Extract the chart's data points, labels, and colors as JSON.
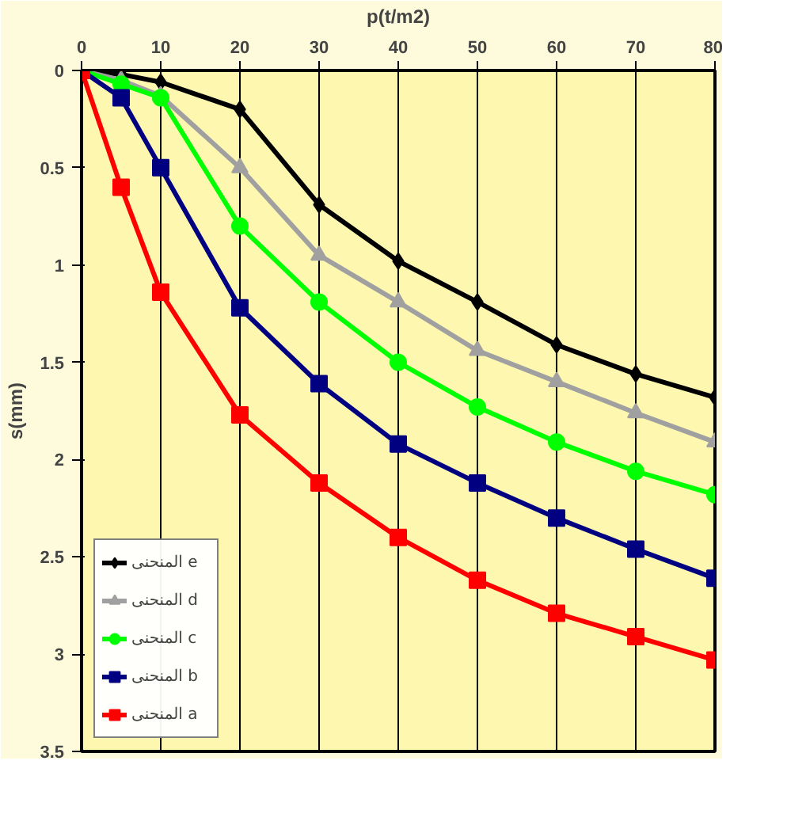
{
  "chart_data": {
    "type": "line",
    "xlabel": "p(t/m2)",
    "ylabel": "s(mm)",
    "x": [
      0,
      5,
      10,
      20,
      30,
      40,
      50,
      60,
      70,
      80
    ],
    "xlim": [
      0,
      80
    ],
    "xticks": [
      0,
      10,
      20,
      30,
      40,
      50,
      60,
      70,
      80
    ],
    "ylim": [
      3.5,
      0
    ],
    "yticks": [
      0,
      0.5,
      1,
      1.5,
      2,
      2.5,
      3,
      3.5
    ],
    "grid": "x",
    "legend": "bottom left",
    "line_style": "solid",
    "series": [
      {
        "name": "المنحنى e",
        "color": "#000000",
        "marker": "diamond",
        "values": [
          0,
          0.02,
          0.06,
          0.2,
          0.69,
          0.98,
          1.19,
          1.41,
          1.56,
          1.68
        ]
      },
      {
        "name": "المنحنى d",
        "color": "#a0a0a0",
        "marker": "triangle",
        "values": [
          0,
          0.05,
          0.13,
          0.5,
          0.95,
          1.19,
          1.44,
          1.6,
          1.76,
          1.91
        ]
      },
      {
        "name": "المنحنى c",
        "color": "#00ff00",
        "marker": "circle",
        "values": [
          0,
          0.07,
          0.14,
          0.8,
          1.19,
          1.5,
          1.73,
          1.91,
          2.06,
          2.18
        ]
      },
      {
        "name": "المنحنى b",
        "color": "#000080",
        "marker": "square",
        "values": [
          0,
          0.14,
          0.5,
          1.22,
          1.61,
          1.92,
          2.12,
          2.3,
          2.46,
          2.61
        ]
      },
      {
        "name": "المنحنى a",
        "color": "#ff0000",
        "marker": "square",
        "values": [
          0,
          0.6,
          1.14,
          1.77,
          2.12,
          2.4,
          2.62,
          2.79,
          2.91,
          3.03
        ]
      }
    ]
  }
}
